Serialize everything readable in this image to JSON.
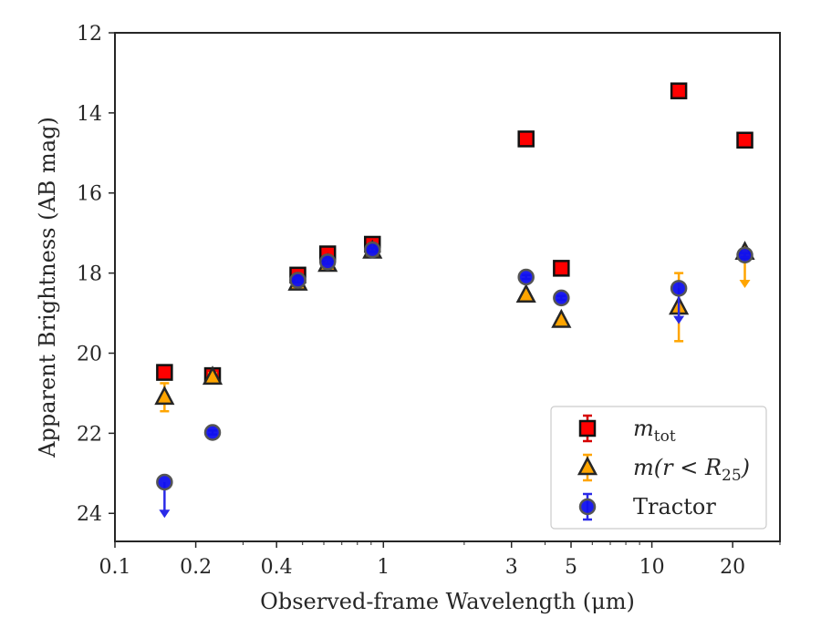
{
  "chart_data": {
    "type": "scatter",
    "xlabel": "Observed-frame Wavelength (μm)",
    "ylabel": "Apparent Brightness (AB mag)",
    "xscale": "log",
    "xlim": [
      0.1,
      30
    ],
    "ylim": [
      24.7,
      12
    ],
    "y_inverted": true,
    "grid": false,
    "legend_position": "lower right",
    "x_tick_labels": [
      "0.1",
      "0.2",
      "0.4",
      "1",
      "3",
      "5",
      "10",
      "20"
    ],
    "x_tick_values": [
      0.1,
      0.2,
      0.4,
      1,
      3,
      5,
      10,
      20
    ],
    "y_tick_values": [
      12,
      14,
      16,
      18,
      20,
      22,
      24
    ],
    "y_tick_labels": [
      "12",
      "14",
      "16",
      "18",
      "20",
      "22",
      "24"
    ],
    "series": [
      {
        "name": "m_tot",
        "legend_label": "m_tot",
        "marker": "square",
        "face_color": "#ff0000",
        "edge_color": "#111111",
        "err_color": "#d60000",
        "points": [
          {
            "x": 0.153,
            "y": 20.48,
            "err": 0.1
          },
          {
            "x": 0.231,
            "y": 20.56,
            "err": 0.1
          },
          {
            "x": 0.48,
            "y": 18.05,
            "err": 0.05
          },
          {
            "x": 0.62,
            "y": 17.52,
            "err": 0.05
          },
          {
            "x": 0.91,
            "y": 17.28,
            "err": 0.05
          },
          {
            "x": 3.4,
            "y": 14.65,
            "err": 0.03
          },
          {
            "x": 4.6,
            "y": 17.88,
            "err": 0.05
          },
          {
            "x": 12.6,
            "y": 13.45,
            "err": 0.03
          },
          {
            "x": 22.2,
            "y": 14.68,
            "err": 0.03
          }
        ]
      },
      {
        "name": "m(r<R25)",
        "legend_label": "m(r<R25)",
        "marker": "triangle",
        "face_color": "#ffa500",
        "edge_color": "#262626",
        "err_color": "#ffa500",
        "points": [
          {
            "x": 0.153,
            "y": 21.1,
            "err": 0.35
          },
          {
            "x": 0.231,
            "y": 20.6,
            "err": 0.1
          },
          {
            "x": 0.48,
            "y": 18.25,
            "err": 0.05
          },
          {
            "x": 0.62,
            "y": 17.78,
            "err": 0.05
          },
          {
            "x": 0.91,
            "y": 17.45,
            "err": 0.05
          },
          {
            "x": 3.4,
            "y": 18.55,
            "err": 0.05
          },
          {
            "x": 4.6,
            "y": 19.18,
            "err": 0.05
          },
          {
            "x": 12.6,
            "y": 18.85,
            "err": 0.85
          },
          {
            "x": 22.2,
            "y": 17.48,
            "upper_limit": true
          }
        ]
      },
      {
        "name": "Tractor",
        "legend_label": "Tractor",
        "marker": "circle",
        "face_color": "#1010ee",
        "edge_color": "#555555",
        "err_color": "#2a2ae8",
        "points": [
          {
            "x": 0.153,
            "y": 23.22,
            "upper_limit": true
          },
          {
            "x": 0.231,
            "y": 21.98,
            "err": 0.05
          },
          {
            "x": 0.48,
            "y": 18.18,
            "err": 0.05
          },
          {
            "x": 0.62,
            "y": 17.72,
            "err": 0.05
          },
          {
            "x": 0.91,
            "y": 17.42,
            "err": 0.05
          },
          {
            "x": 3.4,
            "y": 18.1,
            "err": 0.05
          },
          {
            "x": 4.6,
            "y": 18.62,
            "err": 0.05
          },
          {
            "x": 12.6,
            "y": 18.38,
            "upper_limit": true
          },
          {
            "x": 22.2,
            "y": 17.55,
            "err": 0.05
          }
        ]
      }
    ]
  }
}
